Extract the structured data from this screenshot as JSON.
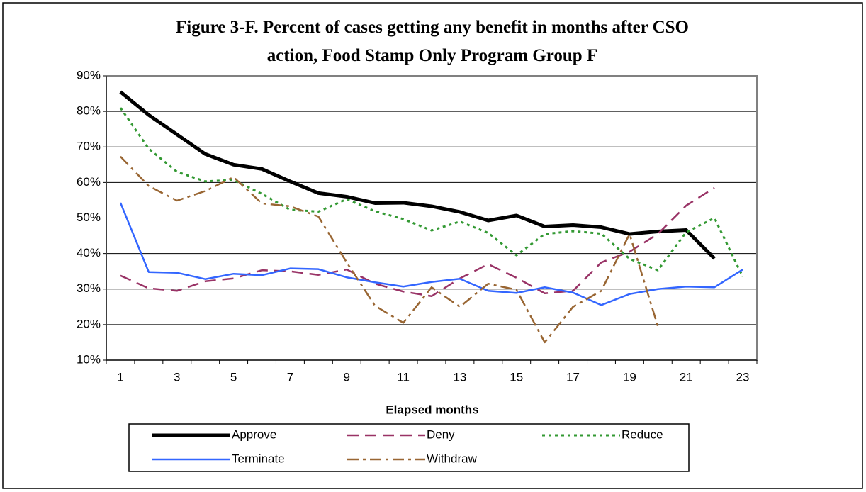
{
  "chart_data": {
    "type": "line",
    "title": "Figure 3-F. Percent of cases getting any benefit in months after CSO action, Food Stamp Only Program Group F",
    "x_label": "Elapsed months",
    "x": [
      1,
      2,
      3,
      4,
      5,
      6,
      7,
      8,
      9,
      10,
      11,
      12,
      13,
      14,
      15,
      16,
      17,
      18,
      19,
      20,
      21,
      22,
      23
    ],
    "xlim": [
      0.5,
      23.5
    ],
    "xticks": [
      1,
      3,
      5,
      7,
      9,
      11,
      13,
      15,
      17,
      19,
      21,
      23
    ],
    "ylim": [
      10,
      90
    ],
    "yticks": [
      {
        "value": 10,
        "label": "10%"
      },
      {
        "value": 20,
        "label": "20%"
      },
      {
        "value": 30,
        "label": "30%"
      },
      {
        "value": 40,
        "label": "40%"
      },
      {
        "value": 50,
        "label": "50%"
      },
      {
        "value": 60,
        "label": "60%"
      },
      {
        "value": 70,
        "label": "70%"
      },
      {
        "value": 80,
        "label": "80%"
      },
      {
        "value": 90,
        "label": "90%"
      }
    ],
    "grid": true,
    "series": [
      {
        "name": "Approve",
        "color": "#000000",
        "values": [
          85.5,
          79,
          73.5,
          68,
          65,
          63.8,
          60.3,
          57,
          56,
          54.2,
          54.3,
          53.3,
          51.7,
          49.3,
          50.7,
          47.6,
          48,
          47.4,
          45.5,
          46.2,
          46.6,
          38.6,
          null
        ]
      },
      {
        "name": "Deny",
        "color": "#993366",
        "values": [
          33.8,
          30.2,
          29.5,
          32.2,
          33,
          35.3,
          35,
          34,
          35.5,
          31.5,
          29.3,
          28,
          33,
          37,
          33.2,
          28.8,
          29.5,
          37.5,
          40.5,
          45.5,
          53.5,
          58.5,
          null
        ]
      },
      {
        "name": "Reduce",
        "color": "#339933",
        "values": [
          81,
          69.5,
          63,
          60.3,
          60.7,
          56.8,
          52.3,
          51.8,
          55.3,
          51.9,
          49.7,
          46.5,
          49,
          45.8,
          39.5,
          45.5,
          46.3,
          45.6,
          38.5,
          35.3,
          46,
          50,
          33.5
        ]
      },
      {
        "name": "Terminate",
        "color": "#3366ff",
        "values": [
          54.3,
          34.8,
          34.6,
          32.8,
          34.3,
          33.9,
          35.8,
          35.6,
          33.3,
          31.9,
          30.7,
          32,
          32.9,
          29.5,
          28.9,
          30.5,
          29,
          25.5,
          28.6,
          30,
          30.7,
          30.5,
          35.5
        ]
      },
      {
        "name": "Withdraw",
        "color": "#996633",
        "values": [
          67.3,
          59,
          54.9,
          57.6,
          61.5,
          54.1,
          53.3,
          50.4,
          37.5,
          25.3,
          20.5,
          30.5,
          25,
          31.5,
          29.8,
          15,
          25,
          29.5,
          45.5,
          19.5,
          null,
          null,
          null
        ]
      }
    ]
  }
}
